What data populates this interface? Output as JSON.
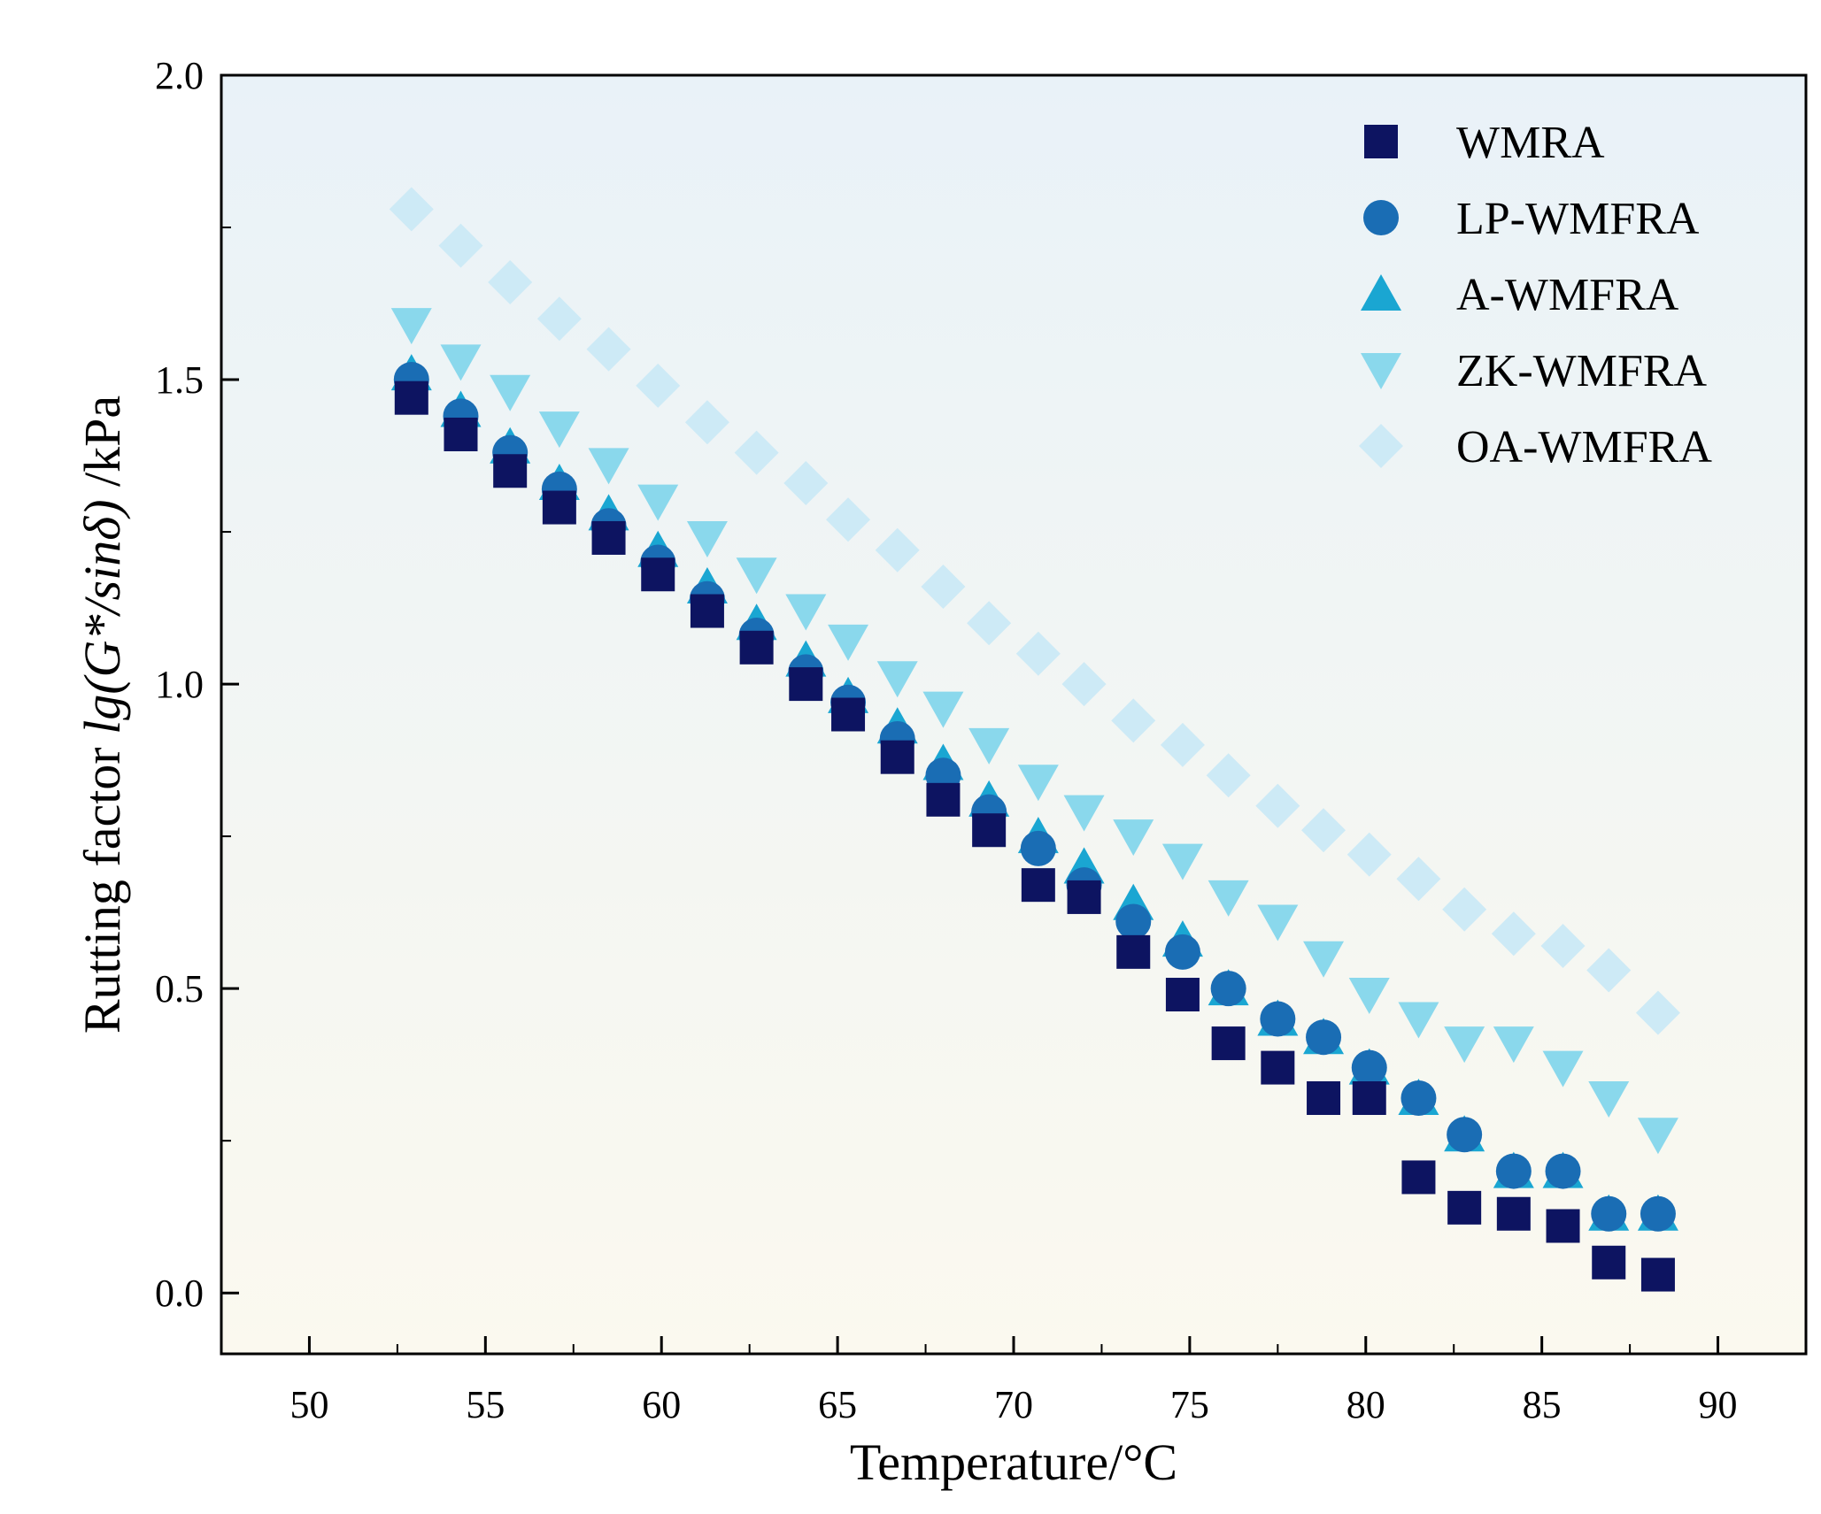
{
  "chart_data": {
    "type": "scatter",
    "title": "",
    "xlabel": "Temperature/°C",
    "ylabel_parts": {
      "prefix": "Rutting factor ",
      "italic": "lg(G*/sinδ)",
      "suffix": " /kPa"
    },
    "xlim": [
      47.5,
      92.5
    ],
    "ylim": [
      -0.1,
      2.0
    ],
    "xticks": [
      50,
      55,
      60,
      65,
      70,
      75,
      80,
      85,
      90
    ],
    "yticks": [
      0.0,
      0.5,
      1.0,
      1.5,
      2.0
    ],
    "xtick_labels": [
      "50",
      "55",
      "60",
      "65",
      "70",
      "75",
      "80",
      "85",
      "90"
    ],
    "ytick_labels": [
      "0.0",
      "0.5",
      "1.0",
      "1.5",
      "2.0"
    ],
    "grid": false,
    "legend_position": "top-right",
    "background_gradient": [
      "#e9f2f8",
      "#fbf9ef"
    ],
    "x": [
      52.9,
      54.3,
      55.7,
      57.1,
      58.5,
      59.9,
      61.3,
      62.7,
      64.1,
      65.3,
      66.7,
      68.0,
      69.3,
      70.7,
      72.0,
      73.4,
      74.8,
      76.1,
      77.5,
      78.8,
      80.1,
      81.5,
      82.8,
      84.2,
      85.6,
      86.9,
      88.3
    ],
    "series": [
      {
        "name": "WMRA",
        "marker": "square",
        "color": "#0d1461",
        "values": [
          1.47,
          1.41,
          1.35,
          1.29,
          1.24,
          1.18,
          1.12,
          1.06,
          1.0,
          0.95,
          0.88,
          0.81,
          0.76,
          0.67,
          0.65,
          0.56,
          0.49,
          0.41,
          0.37,
          0.32,
          0.32,
          0.19,
          0.14,
          0.13,
          0.11,
          0.05,
          0.03
        ]
      },
      {
        "name": "LP-WMFRA",
        "marker": "circle",
        "color": "#1a6db4",
        "values": [
          1.5,
          1.44,
          1.38,
          1.32,
          1.26,
          1.2,
          1.14,
          1.08,
          1.02,
          0.97,
          0.91,
          0.85,
          0.79,
          0.73,
          0.67,
          0.61,
          0.56,
          0.5,
          0.45,
          0.42,
          0.37,
          0.32,
          0.26,
          0.2,
          0.2,
          0.13,
          0.13
        ]
      },
      {
        "name": "A-WMFRA",
        "marker": "triangle-up",
        "color": "#1aa6d2",
        "values": [
          1.51,
          1.45,
          1.39,
          1.33,
          1.28,
          1.22,
          1.16,
          1.1,
          1.04,
          0.98,
          0.93,
          0.87,
          0.81,
          0.75,
          0.7,
          0.64,
          0.58,
          0.5,
          0.45,
          0.42,
          0.37,
          0.32,
          0.26,
          0.2,
          0.2,
          0.13,
          0.13
        ]
      },
      {
        "name": "ZK-WMFRA",
        "marker": "triangle-down",
        "color": "#8ad8ec",
        "values": [
          1.59,
          1.53,
          1.48,
          1.42,
          1.36,
          1.3,
          1.24,
          1.18,
          1.12,
          1.07,
          1.01,
          0.96,
          0.9,
          0.84,
          0.79,
          0.75,
          0.71,
          0.65,
          0.61,
          0.55,
          0.49,
          0.45,
          0.41,
          0.41,
          0.37,
          0.32,
          0.26
        ]
      },
      {
        "name": "OA-WMFRA",
        "marker": "diamond",
        "color": "#cdeaf6",
        "values": [
          1.78,
          1.72,
          1.66,
          1.6,
          1.55,
          1.49,
          1.43,
          1.38,
          1.33,
          1.27,
          1.22,
          1.16,
          1.1,
          1.05,
          1.0,
          0.94,
          0.9,
          0.85,
          0.8,
          0.76,
          0.72,
          0.68,
          0.63,
          0.59,
          0.57,
          0.53,
          0.46
        ]
      }
    ]
  }
}
